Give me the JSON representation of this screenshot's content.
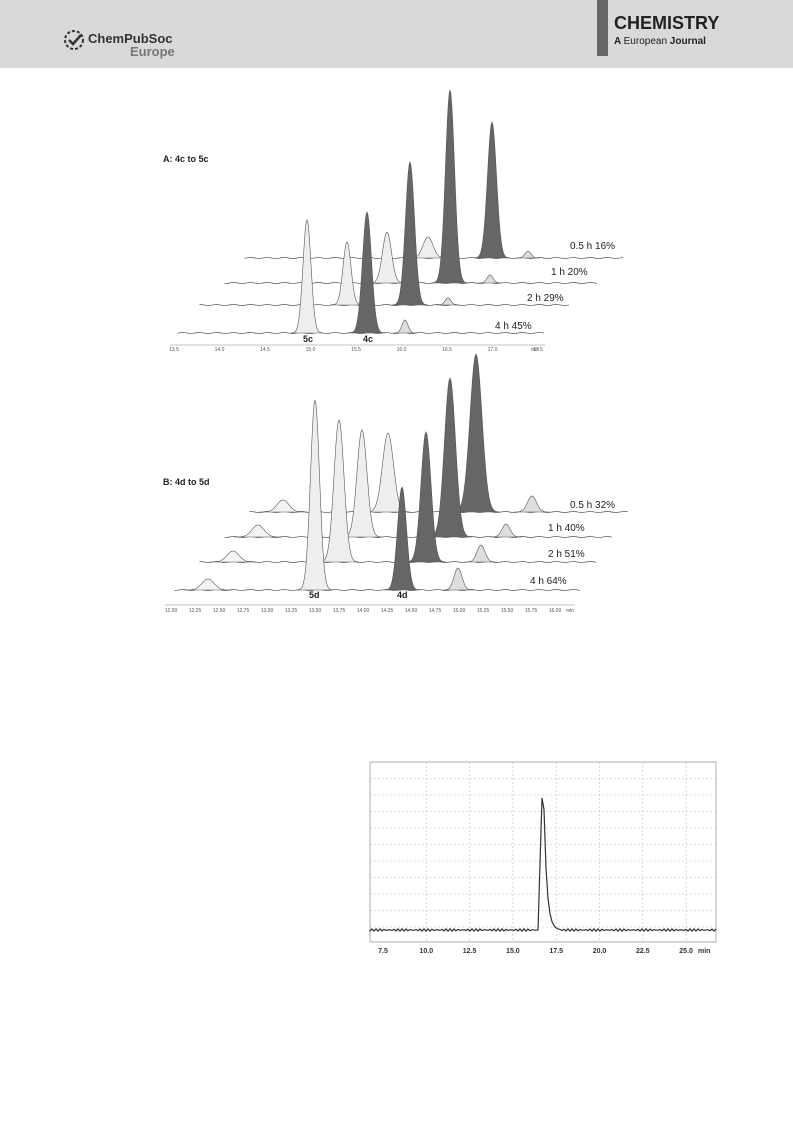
{
  "header": {
    "society": "ChemPubSoc",
    "region": "Europe",
    "journal": "CHEMISTRY",
    "journal_prefix": "A",
    "journal_sub1": "European",
    "journal_sub2": "Journal"
  },
  "panel_a": {
    "title": "A: 4c to 5c",
    "traces": [
      "0.5 h 16%",
      "1 h 20%",
      "2 h 29%",
      "4 h 45%"
    ],
    "peak_labels": [
      "5c",
      "4c"
    ],
    "axis_ticks": [
      "13.5",
      "14.0",
      "14.5",
      "15.0",
      "15.5",
      "16.0",
      "16.5",
      "17.0",
      "17.5"
    ],
    "axis_unit": "min"
  },
  "panel_b": {
    "title": "B: 4d to 5d",
    "traces": [
      "0.5 h 32%",
      "1 h 40%",
      "2 h 51%",
      "4 h 64%"
    ],
    "peak_labels": [
      "5d",
      "4d"
    ],
    "axis_ticks": [
      "12.00",
      "12.25",
      "12.50",
      "12.75",
      "13.00",
      "13.25",
      "13.50",
      "13.75",
      "14.00",
      "14.25",
      "14.50",
      "14.75",
      "15.00",
      "15.25",
      "15.50",
      "15.75",
      "16.00"
    ],
    "axis_unit": "min"
  },
  "panel_c": {
    "axis_ticks": [
      "7.5",
      "10.0",
      "12.5",
      "15.0",
      "17.5",
      "20.0",
      "22.5",
      "25.0"
    ],
    "axis_unit": "min"
  }
}
